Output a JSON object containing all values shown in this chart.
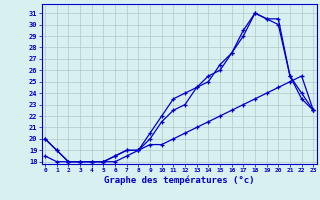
{
  "xlabel": "Graphe des températures (°c)",
  "background_color": "#d8f0f0",
  "grid_color": "#b0c8c8",
  "line_color": "#0000cc",
  "x": [
    0,
    1,
    2,
    3,
    4,
    5,
    6,
    7,
    8,
    9,
    10,
    11,
    12,
    13,
    14,
    15,
    16,
    17,
    18,
    19,
    20,
    21,
    22,
    23
  ],
  "line1": [
    20.0,
    19.0,
    18.0,
    18.0,
    18.0,
    18.0,
    18.5,
    19.0,
    19.0,
    20.0,
    21.5,
    22.5,
    23.0,
    24.5,
    25.5,
    26.0,
    27.5,
    29.5,
    31.0,
    30.5,
    30.0,
    25.5,
    24.0,
    22.5
  ],
  "line2": [
    20.0,
    19.0,
    18.0,
    18.0,
    18.0,
    18.0,
    18.5,
    19.0,
    19.0,
    20.5,
    22.0,
    23.5,
    24.0,
    24.5,
    25.0,
    26.5,
    27.5,
    29.0,
    31.0,
    30.5,
    30.5,
    25.5,
    23.5,
    22.5
  ],
  "line3": [
    18.5,
    18.0,
    18.0,
    18.0,
    18.0,
    18.0,
    18.0,
    18.5,
    19.0,
    19.5,
    19.5,
    20.0,
    20.5,
    21.0,
    21.5,
    22.0,
    22.5,
    23.0,
    23.5,
    24.0,
    24.5,
    25.0,
    25.5,
    22.5
  ],
  "ylim": [
    17.8,
    31.8
  ],
  "yticks": [
    18,
    19,
    20,
    21,
    22,
    23,
    24,
    25,
    26,
    27,
    28,
    29,
    30,
    31
  ],
  "xticks": [
    0,
    1,
    2,
    3,
    4,
    5,
    6,
    7,
    8,
    9,
    10,
    11,
    12,
    13,
    14,
    15,
    16,
    17,
    18,
    19,
    20,
    21,
    22,
    23
  ],
  "xlim": [
    -0.3,
    23.3
  ]
}
